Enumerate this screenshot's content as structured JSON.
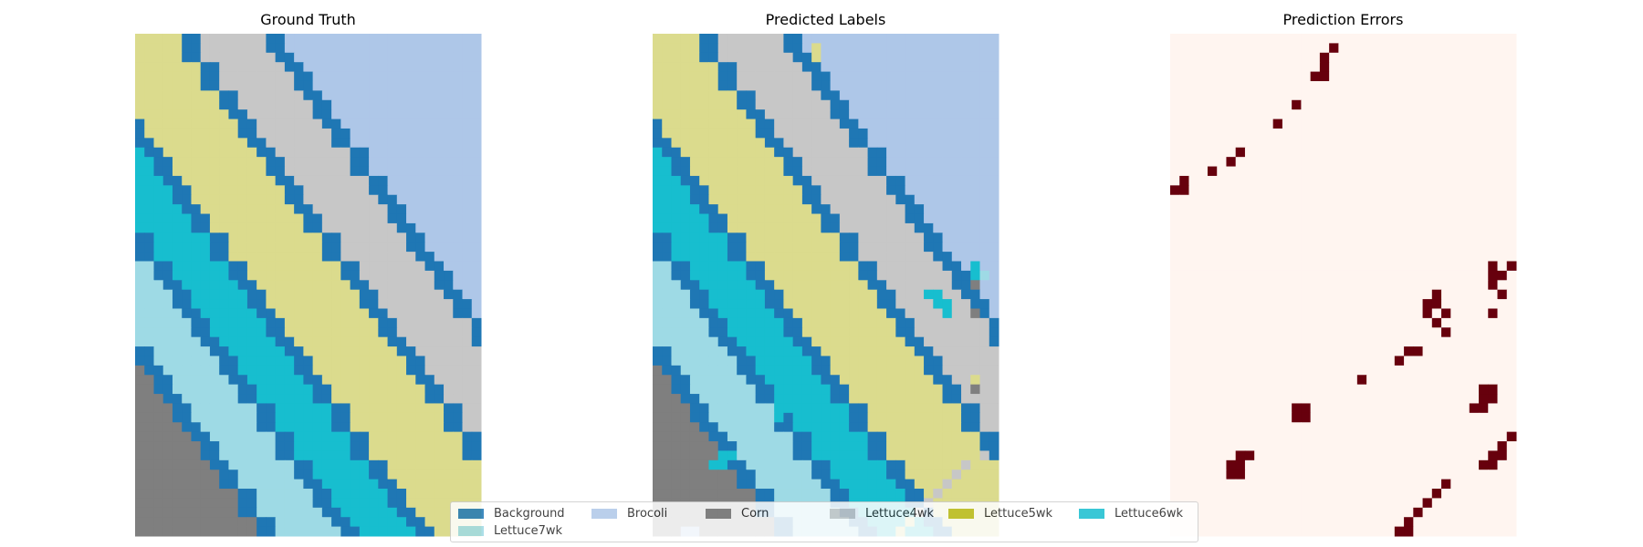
{
  "chart_data": {
    "type": "heatmap",
    "grid": {
      "rows": 53,
      "cols": 37
    },
    "panels": [
      {
        "id": "ground-truth",
        "title": "Ground Truth"
      },
      {
        "id": "predicted-labels",
        "title": "Predicted Labels"
      },
      {
        "id": "prediction-errors",
        "title": "Prediction Errors"
      }
    ],
    "classes": [
      {
        "name": "Background",
        "color": "#1f77b4"
      },
      {
        "name": "Brocoli",
        "color": "#aec7e8"
      },
      {
        "name": "Corn",
        "color": "#7f7f7f"
      },
      {
        "name": "Lettuce4wk",
        "color": "#c7c7c7"
      },
      {
        "name": "Lettuce5wk",
        "color": "#bcbd22"
      },
      {
        "name": "Lettuce6wk",
        "color": "#17becf"
      },
      {
        "name": "Lettuce7wk",
        "color": "#9edae5"
      }
    ],
    "lettuce5wk_field_color": "#dbdb8d",
    "error_colors": {
      "correct": "#fff5f0",
      "error": "#67000d"
    },
    "errors": [
      [
        1,
        17
      ],
      [
        2,
        16
      ],
      [
        3,
        16
      ],
      [
        4,
        15
      ],
      [
        4,
        16
      ],
      [
        7,
        13
      ],
      [
        9,
        11
      ],
      [
        12,
        7
      ],
      [
        13,
        6
      ],
      [
        14,
        4
      ],
      [
        15,
        1
      ],
      [
        16,
        0
      ],
      [
        16,
        1
      ],
      [
        24,
        34
      ],
      [
        24,
        36
      ],
      [
        25,
        34
      ],
      [
        26,
        34
      ],
      [
        25,
        35
      ],
      [
        27,
        35
      ],
      [
        27,
        28
      ],
      [
        28,
        27
      ],
      [
        28,
        28
      ],
      [
        29,
        27
      ],
      [
        29,
        29
      ],
      [
        29,
        34
      ],
      [
        30,
        28
      ],
      [
        31,
        29
      ],
      [
        33,
        25
      ],
      [
        33,
        26
      ],
      [
        34,
        24
      ],
      [
        36,
        20
      ],
      [
        37,
        33
      ],
      [
        37,
        34
      ],
      [
        38,
        33
      ],
      [
        38,
        34
      ],
      [
        39,
        32
      ],
      [
        39,
        33
      ],
      [
        39,
        13
      ],
      [
        39,
        14
      ],
      [
        40,
        13
      ],
      [
        40,
        14
      ],
      [
        42,
        36
      ],
      [
        43,
        35
      ],
      [
        44,
        34
      ],
      [
        44,
        35
      ],
      [
        45,
        33
      ],
      [
        45,
        34
      ],
      [
        44,
        7
      ],
      [
        44,
        8
      ],
      [
        45,
        6
      ],
      [
        45,
        7
      ],
      [
        46,
        6
      ],
      [
        46,
        7
      ],
      [
        47,
        29
      ],
      [
        48,
        28
      ],
      [
        49,
        27
      ],
      [
        50,
        26
      ],
      [
        51,
        25
      ],
      [
        52,
        24
      ],
      [
        52,
        25
      ]
    ],
    "overrides": [
      [
        27,
        30,
        5
      ],
      [
        28,
        30,
        5
      ],
      [
        27,
        29,
        5
      ],
      [
        29,
        31,
        5
      ],
      [
        28,
        31,
        5
      ],
      [
        24,
        34,
        5
      ],
      [
        25,
        34,
        5
      ],
      [
        26,
        34,
        2
      ],
      [
        25,
        35,
        6
      ],
      [
        29,
        34,
        2
      ],
      [
        30,
        33,
        3
      ],
      [
        39,
        13,
        5
      ],
      [
        40,
        13,
        5
      ],
      [
        39,
        14,
        5
      ],
      [
        45,
        6,
        5
      ],
      [
        45,
        7,
        5
      ],
      [
        44,
        7,
        5
      ],
      [
        44,
        8,
        5
      ],
      [
        36,
        34,
        4
      ],
      [
        37,
        33,
        3
      ],
      [
        37,
        34,
        2
      ],
      [
        1,
        17,
        4
      ],
      [
        2,
        17,
        4
      ],
      [
        44,
        35,
        3
      ],
      [
        45,
        33,
        3
      ],
      [
        46,
        32,
        3
      ],
      [
        47,
        31,
        3
      ],
      [
        48,
        30,
        3
      ],
      [
        49,
        29,
        3
      ],
      [
        50,
        28,
        3
      ],
      [
        51,
        27,
        4
      ],
      [
        52,
        26,
        4
      ],
      [
        52,
        3,
        1
      ],
      [
        52,
        4,
        1
      ]
    ],
    "legend_placement": "bottom-center",
    "axes": "off",
    "grid_lines": false
  }
}
